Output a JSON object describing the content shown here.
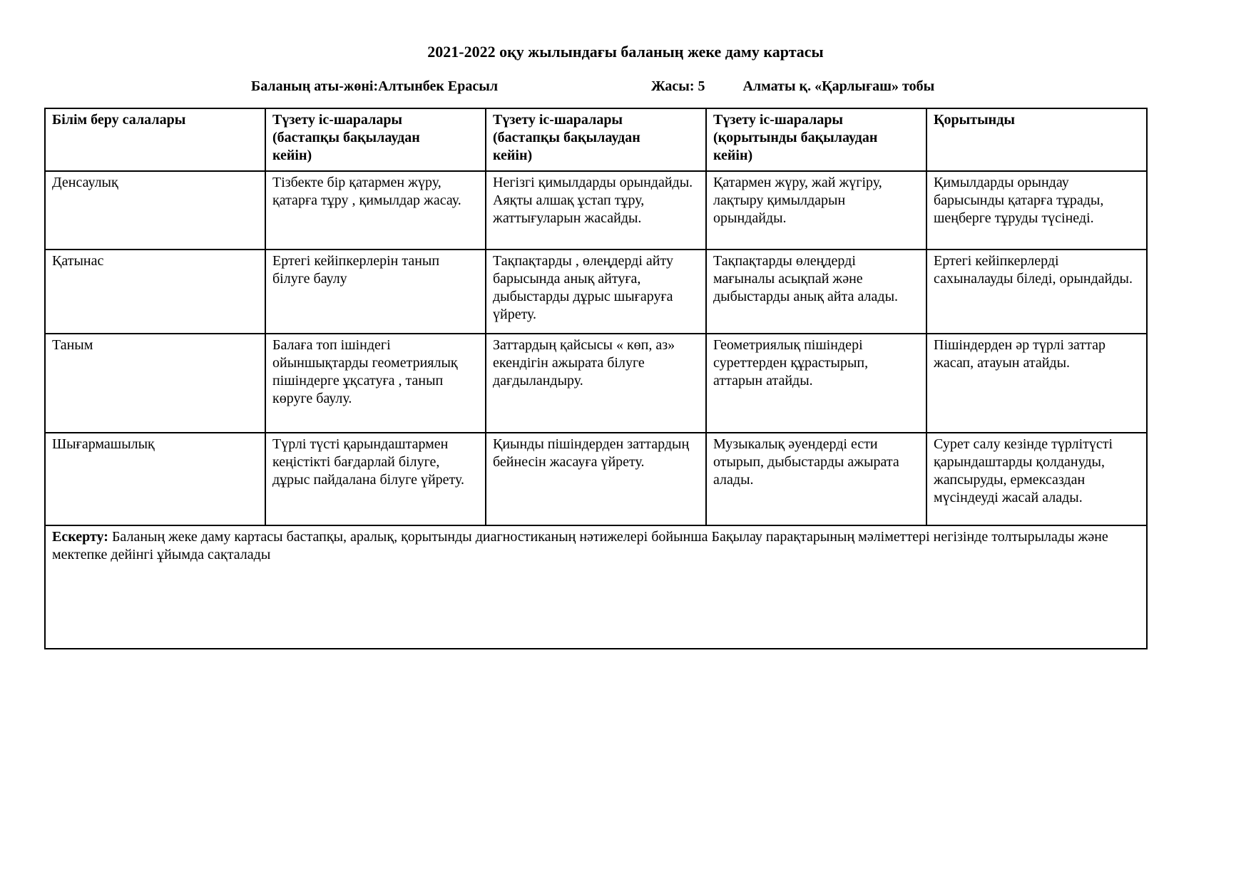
{
  "title": "2021-2022 оқу жылындағы баланың жеке даму картасы",
  "info": {
    "name": "Баланың аты-жөні:Алтынбек Ерасыл",
    "age": "Жасы: 5",
    "group": "Алматы қ. «Қарлығаш» тобы"
  },
  "table": {
    "header": [
      "Білім беру салалары",
      "Түзету іс-шаралары (бастапқы бақылаудан кейін)",
      "Түзету іс-шаралары (бастапқы бақылаудан кейін)",
      "Түзету іс-шаралары (қорытынды бақылаудан кейін)",
      "Қорытынды"
    ],
    "rows": [
      {
        "area": "Денсаулық",
        "cells": [
          "Тізбекте бір қатармен жүру, қатарға тұру , қимылдар жасау.",
          "Негізгі қимылдарды орындайды. Аяқты алшақ ұстап тұру, жаттығуларын жасайды.",
          "Қатармен жүру, жай жүгіру, лақтыру қимылдарын орындайды.",
          "Қимылдарды орындау барысынды қатарға тұрады, шеңберге тұруды түсінеді."
        ]
      },
      {
        "area": "Қатынас",
        "cells": [
          "Ертегі кейіпкерлерін танып білуге баулу",
          "Тақпақтарды , өлеңдерді айту барысында анық айтуға, дыбыстарды дұрыс шығаруға үйрету.",
          "Тақпақтарды өлеңдерді мағыналы асықпай және дыбыстарды анық айта алады.",
          "Ертегі кейіпкерлерді сахыналауды біледі, орындайды."
        ]
      },
      {
        "area": "Таным",
        "cells": [
          "Балаға топ ішіндегі ойыншықтарды геометриялық пішіндерге ұқсатуға , танып көруге баулу.",
          "Заттардың қайсысы « көп, аз» екендігін ажырата білуге дағдыландыру.",
          "Геометриялық пішіндері суреттерден құрастырып, аттарын атайды.",
          "Пішіндерден әр түрлі заттар жасап, атауын атайды."
        ]
      },
      {
        "area": "Шығармашылық",
        "cells": [
          "Түрлі түсті қарындаштармен кеңістікті бағдарлай білуге, дұрыс пайдалана білуге үйрету.",
          "Қиынды пішіндерден заттардың бейнесін жасауға үйрету.",
          "Музыкалық әуендерді ести отырып, дыбыстарды ажырата алады.",
          "Сурет салу кезінде түрлітүсті қарындаштарды қолдануды, жапсыруды, ермексаздан мүсіндеуді жасай алады."
        ]
      }
    ]
  },
  "note": {
    "label": "Ескерту:",
    "text": "Баланың жеке даму картасы бастапқы, аралық, қорытынды диагностиканың нәтижелері бойынша Бақылау парақтарының мәліметтері негізінде толтырылады және мектепке дейінгі ұйымда сақталады"
  }
}
